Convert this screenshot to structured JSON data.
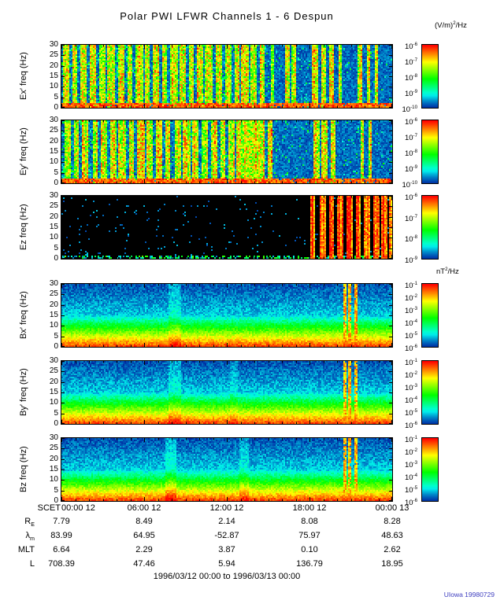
{
  "title": "Polar PWI LFWR Channels 1 - 6 Despun",
  "footer": "1996/03/12 00:00 to 1996/03/13 00:00",
  "credit": "UIowa 19980729",
  "colors": {
    "background": "#ffffff",
    "text": "#000000",
    "credit": "#4040c0",
    "colormap_stops": [
      "#000000",
      "#00008f",
      "#0000ff",
      "#00ffff",
      "#00ff00",
      "#ffff00",
      "#ff0000"
    ]
  },
  "labels": {
    "e_units": "(V/m)^2/Hz",
    "b_units": "nT^2/Hz",
    "scet": "SCET"
  },
  "xaxis": {
    "ticks": [
      "00:00 12",
      "06:00 12",
      "12:00 12",
      "18:00 12",
      "00:00 13"
    ],
    "fractions": [
      0,
      0.25,
      0.5,
      0.75,
      1
    ]
  },
  "ephemeris": [
    {
      "label": "R_E",
      "values": [
        "7.79",
        "8.49",
        "2.14",
        "8.08",
        "8.28"
      ]
    },
    {
      "label": "λ_m",
      "values": [
        "83.99",
        "64.95",
        "-52.87",
        "75.97",
        "48.63"
      ]
    },
    {
      "label": "MLT",
      "values": [
        "6.64",
        "2.29",
        "3.87",
        "0.10",
        "2.62"
      ]
    },
    {
      "label": "L",
      "values": [
        "708.39",
        "47.46",
        "5.94",
        "136.79",
        "18.95"
      ]
    }
  ],
  "chart_data": {
    "type": "heatmap",
    "title": "Polar PWI LFWR Channels 1 - 6 Despun",
    "time_range": "1996/03/12 00:00 to 1996/03/13 00:00",
    "x_ticks": [
      "00:00 12",
      "06:00 12",
      "12:00 12",
      "18:00 12",
      "00:00 13"
    ],
    "panels": [
      {
        "id": "ex",
        "ylabel": "Ex′ freq (Hz)",
        "ylim": [
          0,
          30
        ],
        "yticks": [
          0,
          5,
          10,
          15,
          20,
          25,
          30
        ],
        "colorbar": {
          "units": "(V/m)^2/Hz",
          "ticks": [
            "10^-6",
            "10^-7",
            "10^-8",
            "10^-9",
            "10^-10"
          ]
        },
        "render": {
          "kind": "bursts",
          "seed": 11,
          "active": [
            0,
            0.64
          ],
          "stripes": [
            [
              0.012,
              0.012
            ],
            [
              0.038,
              0.013
            ],
            [
              0.065,
              0.016
            ],
            [
              0.093,
              0.017
            ],
            [
              0.122,
              0.013
            ],
            [
              0.148,
              0.019
            ],
            [
              0.178,
              0.015
            ],
            [
              0.205,
              0.013
            ],
            [
              0.232,
              0.017
            ],
            [
              0.258,
              0.012
            ],
            [
              0.285,
              0.015
            ],
            [
              0.31,
              0.013
            ],
            [
              0.338,
              0.017
            ],
            [
              0.365,
              0.013
            ],
            [
              0.39,
              0.012
            ],
            [
              0.418,
              0.015
            ],
            [
              0.445,
              0.019
            ],
            [
              0.475,
              0.013
            ],
            [
              0.502,
              0.015
            ],
            [
              0.528,
              0.012
            ],
            [
              0.553,
              0.017
            ],
            [
              0.578,
              0.013
            ],
            [
              0.604,
              0.012
            ],
            [
              0.636,
              0.008
            ],
            [
              0.682,
              0.009
            ],
            [
              0.7,
              0.007
            ],
            [
              0.765,
              0.012
            ],
            [
              0.79,
              0.013
            ],
            [
              0.815,
              0.011
            ],
            [
              0.84,
              0.008
            ],
            [
              0.9,
              0.005
            ],
            [
              0.925,
              0.004
            ],
            [
              0.95,
              0.004
            ]
          ]
        }
      },
      {
        "id": "ey",
        "ylabel": "Ey′ freq (Hz)",
        "ylim": [
          0,
          30
        ],
        "yticks": [
          0,
          5,
          10,
          15,
          20,
          25,
          30
        ],
        "colorbar": {
          "units": "(V/m)^2/Hz",
          "ticks": [
            "10^-6",
            "10^-7",
            "10^-8",
            "10^-9",
            "10^-10"
          ]
        },
        "render": {
          "kind": "bursts",
          "seed": 23,
          "active": [
            0,
            0.65
          ],
          "stripes": [
            [
              0.015,
              0.013
            ],
            [
              0.042,
              0.012
            ],
            [
              0.07,
              0.017
            ],
            [
              0.1,
              0.013
            ],
            [
              0.128,
              0.015
            ],
            [
              0.155,
              0.013
            ],
            [
              0.182,
              0.017
            ],
            [
              0.21,
              0.012
            ],
            [
              0.238,
              0.015
            ],
            [
              0.265,
              0.013
            ],
            [
              0.292,
              0.017
            ],
            [
              0.32,
              0.012
            ],
            [
              0.348,
              0.015
            ],
            [
              0.375,
              0.017
            ],
            [
              0.402,
              0.012
            ],
            [
              0.43,
              0.015
            ],
            [
              0.458,
              0.013
            ],
            [
              0.485,
              0.012
            ],
            [
              0.512,
              0.015
            ],
            [
              0.54,
              0.019
            ],
            [
              0.566,
              0.026
            ],
            [
              0.598,
              0.022
            ],
            [
              0.63,
              0.009
            ],
            [
              0.768,
              0.013
            ],
            [
              0.793,
              0.015
            ],
            [
              0.818,
              0.011
            ],
            [
              0.905,
              0.005
            ],
            [
              0.93,
              0.004
            ]
          ]
        }
      },
      {
        "id": "ez",
        "ylabel": "Ez freq (Hz)",
        "ylim": [
          0,
          30
        ],
        "yticks": [
          0,
          5,
          10,
          15,
          20,
          25,
          30
        ],
        "colorbar": {
          "units": "(V/m)^2/Hz",
          "ticks": [
            "10^-6",
            "10^-7",
            "10^-8",
            "10^-9"
          ]
        },
        "render": {
          "kind": "dark",
          "seed": 37,
          "stripes": [
            [
              0.757,
              0.007
            ],
            [
              0.788,
              0.015
            ],
            [
              0.814,
              0.013
            ],
            [
              0.84,
              0.012
            ],
            [
              0.868,
              0.015
            ],
            [
              0.895,
              0.013
            ],
            [
              0.922,
              0.012
            ],
            [
              0.949,
              0.015
            ],
            [
              0.975,
              0.013
            ],
            [
              0.993,
              0.009
            ]
          ]
        }
      },
      {
        "id": "bx",
        "ylabel": "Bx′ freq (Hz)",
        "ylim": [
          0,
          30
        ],
        "yticks": [
          0,
          5,
          10,
          15,
          20,
          25,
          30
        ],
        "colorbar": {
          "units": "nT^2/Hz",
          "ticks": [
            "10^-1",
            "10^-2",
            "10^-3",
            "10^-4",
            "10^-5",
            "10^-6"
          ]
        },
        "render": {
          "kind": "gradient",
          "seed": 41,
          "lines": [
            [
              0.853,
              0.006
            ],
            [
              0.87,
              0.004
            ],
            [
              0.886,
              0.005
            ]
          ],
          "smudges": [
            [
              0.34,
              0.03,
              0.07
            ]
          ]
        }
      },
      {
        "id": "by",
        "ylabel": "By′ freq (Hz)",
        "ylim": [
          0,
          30
        ],
        "yticks": [
          0,
          5,
          10,
          15,
          20,
          25,
          30
        ],
        "colorbar": {
          "units": "nT^2/Hz",
          "ticks": [
            "10^-1",
            "10^-2",
            "10^-3",
            "10^-4",
            "10^-5",
            "10^-6"
          ]
        },
        "render": {
          "kind": "gradient",
          "seed": 53,
          "lines": [
            [
              0.853,
              0.006
            ],
            [
              0.87,
              0.004
            ],
            [
              0.886,
              0.005
            ]
          ],
          "smudges": [
            [
              0.34,
              0.03,
              0.07
            ],
            [
              0.52,
              0.02,
              0.05
            ]
          ]
        }
      },
      {
        "id": "bz",
        "ylabel": "Bz freq (Hz)",
        "ylim": [
          0,
          30
        ],
        "yticks": [
          0,
          5,
          10,
          15,
          20,
          25,
          30
        ],
        "colorbar": {
          "units": "nT^2/Hz",
          "ticks": [
            "10^-1",
            "10^-2",
            "10^-3",
            "10^-4",
            "10^-5",
            "10^-6"
          ]
        },
        "render": {
          "kind": "gradient",
          "seed": 67,
          "lines": [
            [
              0.853,
              0.006
            ],
            [
              0.87,
              0.004
            ],
            [
              0.886,
              0.005
            ]
          ],
          "smudges": [
            [
              0.33,
              0.03,
              0.09
            ],
            [
              0.55,
              0.02,
              0.06
            ]
          ]
        }
      }
    ]
  }
}
